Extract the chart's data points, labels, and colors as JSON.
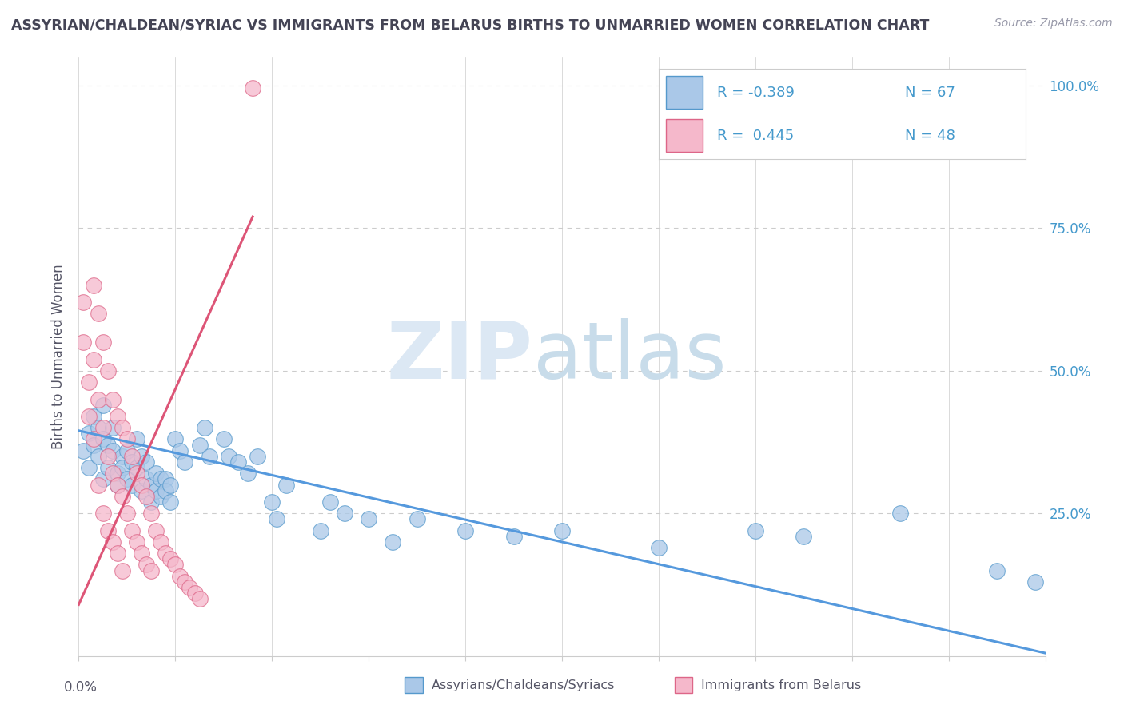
{
  "title": "ASSYRIAN/CHALDEAN/SYRIAC VS IMMIGRANTS FROM BELARUS BIRTHS TO UNMARRIED WOMEN CORRELATION CHART",
  "source": "Source: ZipAtlas.com",
  "ylabel": "Births to Unmarried Women",
  "watermark_zip": "ZIP",
  "watermark_atlas": "atlas",
  "legend_blue_r": "R = -0.389",
  "legend_blue_n": "N = 67",
  "legend_pink_r": "R =  0.445",
  "legend_pink_n": "N = 48",
  "blue_face": "#aac8e8",
  "pink_face": "#f5b8cb",
  "blue_edge": "#5599cc",
  "pink_edge": "#dd6688",
  "blue_line": "#5599dd",
  "pink_line": "#dd5577",
  "grid_color": "#cccccc",
  "title_color": "#444455",
  "source_color": "#999aaa",
  "ylabel_color": "#555566",
  "right_tick_color": "#4499cc",
  "bottom_label_color": "#555566",
  "background": "#ffffff",
  "blue_scatter": [
    [
      0.001,
      0.36
    ],
    [
      0.002,
      0.39
    ],
    [
      0.002,
      0.33
    ],
    [
      0.003,
      0.42
    ],
    [
      0.003,
      0.37
    ],
    [
      0.004,
      0.4
    ],
    [
      0.004,
      0.35
    ],
    [
      0.005,
      0.38
    ],
    [
      0.005,
      0.31
    ],
    [
      0.005,
      0.44
    ],
    [
      0.006,
      0.33
    ],
    [
      0.006,
      0.37
    ],
    [
      0.007,
      0.4
    ],
    [
      0.007,
      0.36
    ],
    [
      0.008,
      0.32
    ],
    [
      0.008,
      0.3
    ],
    [
      0.009,
      0.35
    ],
    [
      0.009,
      0.33
    ],
    [
      0.01,
      0.36
    ],
    [
      0.01,
      0.31
    ],
    [
      0.011,
      0.34
    ],
    [
      0.011,
      0.3
    ],
    [
      0.012,
      0.33
    ],
    [
      0.012,
      0.38
    ],
    [
      0.013,
      0.35
    ],
    [
      0.013,
      0.29
    ],
    [
      0.014,
      0.31
    ],
    [
      0.014,
      0.34
    ],
    [
      0.015,
      0.3
    ],
    [
      0.015,
      0.27
    ],
    [
      0.016,
      0.29
    ],
    [
      0.016,
      0.32
    ],
    [
      0.017,
      0.31
    ],
    [
      0.017,
      0.28
    ],
    [
      0.018,
      0.31
    ],
    [
      0.018,
      0.29
    ],
    [
      0.019,
      0.3
    ],
    [
      0.019,
      0.27
    ],
    [
      0.02,
      0.38
    ],
    [
      0.021,
      0.36
    ],
    [
      0.022,
      0.34
    ],
    [
      0.025,
      0.37
    ],
    [
      0.026,
      0.4
    ],
    [
      0.027,
      0.35
    ],
    [
      0.03,
      0.38
    ],
    [
      0.031,
      0.35
    ],
    [
      0.033,
      0.34
    ],
    [
      0.035,
      0.32
    ],
    [
      0.037,
      0.35
    ],
    [
      0.04,
      0.27
    ],
    [
      0.041,
      0.24
    ],
    [
      0.043,
      0.3
    ],
    [
      0.05,
      0.22
    ],
    [
      0.052,
      0.27
    ],
    [
      0.055,
      0.25
    ],
    [
      0.06,
      0.24
    ],
    [
      0.065,
      0.2
    ],
    [
      0.07,
      0.24
    ],
    [
      0.08,
      0.22
    ],
    [
      0.09,
      0.21
    ],
    [
      0.1,
      0.22
    ],
    [
      0.12,
      0.19
    ],
    [
      0.14,
      0.22
    ],
    [
      0.15,
      0.21
    ],
    [
      0.17,
      0.25
    ],
    [
      0.19,
      0.15
    ],
    [
      0.198,
      0.13
    ]
  ],
  "pink_scatter": [
    [
      0.001,
      0.62
    ],
    [
      0.001,
      0.55
    ],
    [
      0.002,
      0.48
    ],
    [
      0.002,
      0.42
    ],
    [
      0.003,
      0.65
    ],
    [
      0.003,
      0.52
    ],
    [
      0.003,
      0.38
    ],
    [
      0.004,
      0.6
    ],
    [
      0.004,
      0.45
    ],
    [
      0.004,
      0.3
    ],
    [
      0.005,
      0.55
    ],
    [
      0.005,
      0.4
    ],
    [
      0.005,
      0.25
    ],
    [
      0.006,
      0.5
    ],
    [
      0.006,
      0.35
    ],
    [
      0.006,
      0.22
    ],
    [
      0.007,
      0.45
    ],
    [
      0.007,
      0.32
    ],
    [
      0.007,
      0.2
    ],
    [
      0.008,
      0.42
    ],
    [
      0.008,
      0.3
    ],
    [
      0.008,
      0.18
    ],
    [
      0.009,
      0.4
    ],
    [
      0.009,
      0.28
    ],
    [
      0.009,
      0.15
    ],
    [
      0.01,
      0.38
    ],
    [
      0.01,
      0.25
    ],
    [
      0.011,
      0.35
    ],
    [
      0.011,
      0.22
    ],
    [
      0.012,
      0.32
    ],
    [
      0.012,
      0.2
    ],
    [
      0.013,
      0.3
    ],
    [
      0.013,
      0.18
    ],
    [
      0.014,
      0.28
    ],
    [
      0.014,
      0.16
    ],
    [
      0.015,
      0.25
    ],
    [
      0.015,
      0.15
    ],
    [
      0.016,
      0.22
    ],
    [
      0.017,
      0.2
    ],
    [
      0.018,
      0.18
    ],
    [
      0.019,
      0.17
    ],
    [
      0.02,
      0.16
    ],
    [
      0.021,
      0.14
    ],
    [
      0.022,
      0.13
    ],
    [
      0.023,
      0.12
    ],
    [
      0.024,
      0.11
    ],
    [
      0.025,
      0.1
    ],
    [
      0.036,
      0.996
    ]
  ],
  "blue_trend_x": [
    0.0,
    0.2
  ],
  "blue_trend_y": [
    0.395,
    0.005
  ],
  "pink_trend_x": [
    0.0,
    0.036
  ],
  "pink_trend_y": [
    0.09,
    0.77
  ],
  "xmin": 0.0,
  "xmax": 0.2,
  "ymin": 0.0,
  "ymax": 1.05,
  "yticks": [
    0.25,
    0.5,
    0.75,
    1.0
  ],
  "ytick_labels": [
    "25.0%",
    "50.0%",
    "75.0%",
    "100.0%"
  ]
}
